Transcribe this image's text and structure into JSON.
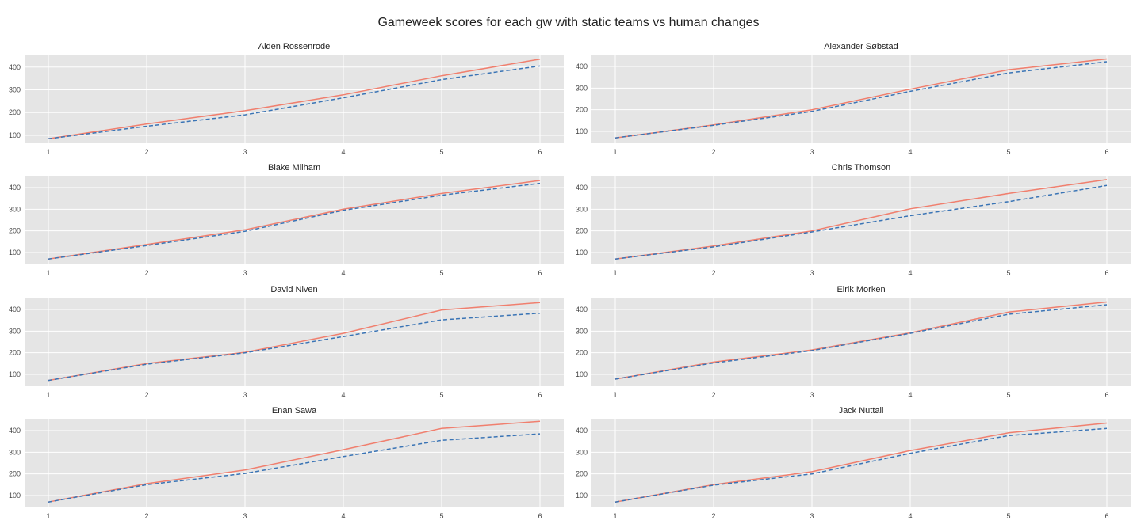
{
  "figure": {
    "title": "Gameweek scores for each gw with static teams vs human changes"
  },
  "chart_data": [
    {
      "type": "line",
      "title": "Aiden Rossenrode",
      "x": [
        1,
        2,
        3,
        4,
        5,
        6
      ],
      "ylim": [
        65,
        455
      ],
      "yticks": [
        100,
        200,
        300,
        400
      ],
      "grid": true,
      "series": [
        {
          "color": "#f07f6e",
          "style": "solid",
          "values": [
            85,
            150,
            208,
            278,
            362,
            435
          ]
        },
        {
          "color": "#3a74b5",
          "style": "dashed",
          "values": [
            85,
            140,
            190,
            265,
            345,
            405
          ]
        }
      ]
    },
    {
      "type": "line",
      "title": "Alexander Søbstad",
      "x": [
        1,
        2,
        3,
        4,
        5,
        6
      ],
      "ylim": [
        45,
        455
      ],
      "yticks": [
        100,
        200,
        300,
        400
      ],
      "grid": true,
      "series": [
        {
          "color": "#f07f6e",
          "style": "solid",
          "values": [
            70,
            130,
            200,
            295,
            385,
            435
          ]
        },
        {
          "color": "#3a74b5",
          "style": "dashed",
          "values": [
            70,
            128,
            192,
            285,
            370,
            422
          ]
        }
      ]
    },
    {
      "type": "line",
      "title": "Blake Milham",
      "x": [
        1,
        2,
        3,
        4,
        5,
        6
      ],
      "ylim": [
        45,
        455
      ],
      "yticks": [
        100,
        200,
        300,
        400
      ],
      "grid": true,
      "series": [
        {
          "color": "#f07f6e",
          "style": "solid",
          "values": [
            70,
            137,
            205,
            300,
            373,
            433
          ]
        },
        {
          "color": "#3a74b5",
          "style": "dashed",
          "values": [
            70,
            132,
            198,
            295,
            365,
            420
          ]
        }
      ]
    },
    {
      "type": "line",
      "title": "Chris Thomson",
      "x": [
        1,
        2,
        3,
        4,
        5,
        6
      ],
      "ylim": [
        45,
        455
      ],
      "yticks": [
        100,
        200,
        300,
        400
      ],
      "grid": true,
      "series": [
        {
          "color": "#f07f6e",
          "style": "solid",
          "values": [
            70,
            130,
            200,
            302,
            373,
            437
          ]
        },
        {
          "color": "#3a74b5",
          "style": "dashed",
          "values": [
            70,
            126,
            195,
            270,
            335,
            410
          ]
        }
      ]
    },
    {
      "type": "line",
      "title": "David Niven",
      "x": [
        1,
        2,
        3,
        4,
        5,
        6
      ],
      "ylim": [
        45,
        455
      ],
      "yticks": [
        100,
        200,
        300,
        400
      ],
      "grid": true,
      "series": [
        {
          "color": "#f07f6e",
          "style": "solid",
          "values": [
            72,
            150,
            202,
            290,
            398,
            432
          ]
        },
        {
          "color": "#3a74b5",
          "style": "dashed",
          "values": [
            72,
            147,
            200,
            275,
            352,
            383
          ]
        }
      ]
    },
    {
      "type": "line",
      "title": "Eirik Morken",
      "x": [
        1,
        2,
        3,
        4,
        5,
        6
      ],
      "ylim": [
        45,
        455
      ],
      "yticks": [
        100,
        200,
        300,
        400
      ],
      "grid": true,
      "series": [
        {
          "color": "#f07f6e",
          "style": "solid",
          "values": [
            78,
            157,
            213,
            292,
            388,
            435
          ]
        },
        {
          "color": "#3a74b5",
          "style": "dashed",
          "values": [
            78,
            153,
            210,
            290,
            378,
            422
          ]
        }
      ]
    },
    {
      "type": "line",
      "title": "Enan Sawa",
      "x": [
        1,
        2,
        3,
        4,
        5,
        6
      ],
      "ylim": [
        45,
        455
      ],
      "yticks": [
        100,
        200,
        300,
        400
      ],
      "grid": true,
      "series": [
        {
          "color": "#f07f6e",
          "style": "solid",
          "values": [
            70,
            155,
            218,
            312,
            410,
            443
          ]
        },
        {
          "color": "#3a74b5",
          "style": "dashed",
          "values": [
            70,
            150,
            202,
            280,
            355,
            385
          ]
        }
      ]
    },
    {
      "type": "line",
      "title": "Jack Nuttall",
      "x": [
        1,
        2,
        3,
        4,
        5,
        6
      ],
      "ylim": [
        45,
        455
      ],
      "yticks": [
        100,
        200,
        300,
        400
      ],
      "grid": true,
      "series": [
        {
          "color": "#f07f6e",
          "style": "solid",
          "values": [
            70,
            150,
            210,
            308,
            390,
            435
          ]
        },
        {
          "color": "#3a74b5",
          "style": "dashed",
          "values": [
            70,
            148,
            200,
            295,
            377,
            410
          ]
        }
      ]
    }
  ]
}
